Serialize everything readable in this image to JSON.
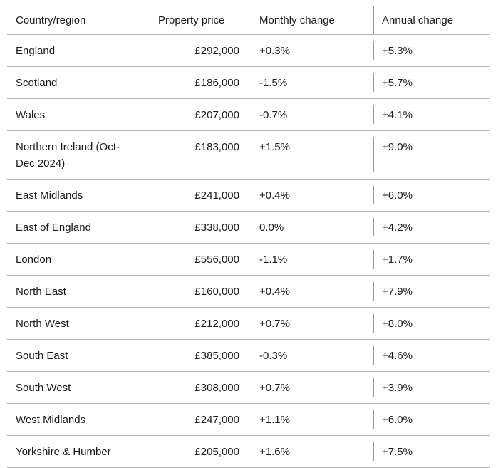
{
  "table": {
    "headers": [
      "Country/region",
      "Property price",
      "Monthly change",
      "Annual change"
    ],
    "rows": [
      [
        "England",
        "£292,000",
        "+0.3%",
        "+5.3%"
      ],
      [
        "Scotland",
        "£186,000",
        "-1.5%",
        "+5.7%"
      ],
      [
        "Wales",
        "£207,000",
        "-0.7%",
        "+4.1%"
      ],
      [
        "Northern Ireland (Oct-Dec 2024)",
        "£183,000",
        "+1.5%",
        "+9.0%"
      ],
      [
        "East Midlands",
        "£241,000",
        "+0.4%",
        "+6.0%"
      ],
      [
        "East of England",
        "£338,000",
        "0.0%",
        "+4.2%"
      ],
      [
        "London",
        "£556,000",
        "-1.1%",
        "+1.7%"
      ],
      [
        "North East",
        "£160,000",
        "+0.4%",
        "+7.9%"
      ],
      [
        "North West",
        "£212,000",
        "+0.7%",
        "+8.0%"
      ],
      [
        "South East",
        "£385,000",
        "-0.3%",
        "+4.6%"
      ],
      [
        "South West",
        "£308,000",
        "+0.7%",
        "+3.9%"
      ],
      [
        "West Midlands",
        "£247,000",
        "+1.1%",
        "+6.0%"
      ],
      [
        "Yorkshire & Humber",
        "£205,000",
        "+1.6%",
        "+7.5%"
      ]
    ]
  }
}
